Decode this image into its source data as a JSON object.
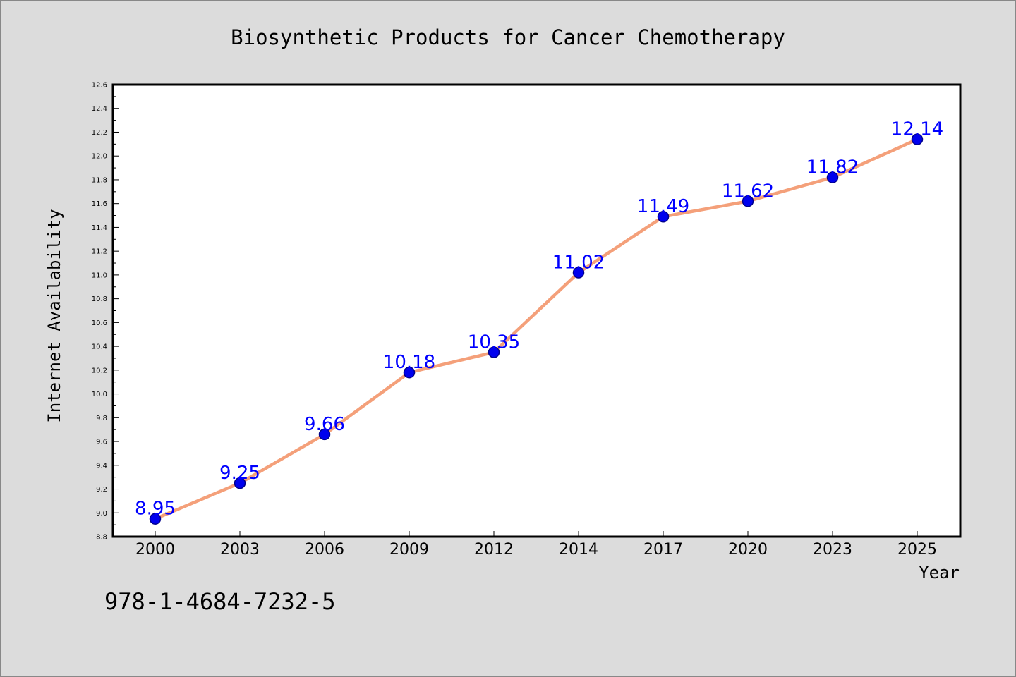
{
  "chart_data": {
    "type": "line",
    "title": "Biosynthetic Products for Cancer Chemotherapy",
    "xlabel": "Year",
    "ylabel": "Internet Availability",
    "categories": [
      "2000",
      "2003",
      "2006",
      "2009",
      "2012",
      "2014",
      "2017",
      "2020",
      "2023",
      "2025"
    ],
    "series": [
      {
        "values": [
          8.95,
          9.25,
          9.66,
          10.18,
          10.35,
          11.02,
          11.49,
          11.62,
          11.82,
          12.14
        ]
      }
    ],
    "data_labels": [
      "8.95",
      "9.25",
      "9.66",
      "10.18",
      "10.35",
      "11.02",
      "11.49",
      "11.62",
      "11.82",
      "12.14"
    ],
    "ylim": [
      8.8,
      12.6
    ],
    "yticks": [
      "8.8",
      "9.0",
      "9.2",
      "9.4",
      "9.6",
      "9.8",
      "10.0",
      "10.2",
      "10.4",
      "10.6",
      "10.8",
      "11.0",
      "11.2",
      "11.4",
      "11.6",
      "11.8",
      "12.0",
      "12.2",
      "12.4",
      "12.6"
    ],
    "grid": false,
    "legend": "none",
    "colors": {
      "line": "#f4a07a",
      "marker_fill": "#0000ee",
      "marker_edge": "#00008b",
      "data_label": "#0000ff",
      "background": "#dcdcdc",
      "plot_background": "#ffffff"
    }
  },
  "isbn_text": "978-1-4684-7232-5"
}
